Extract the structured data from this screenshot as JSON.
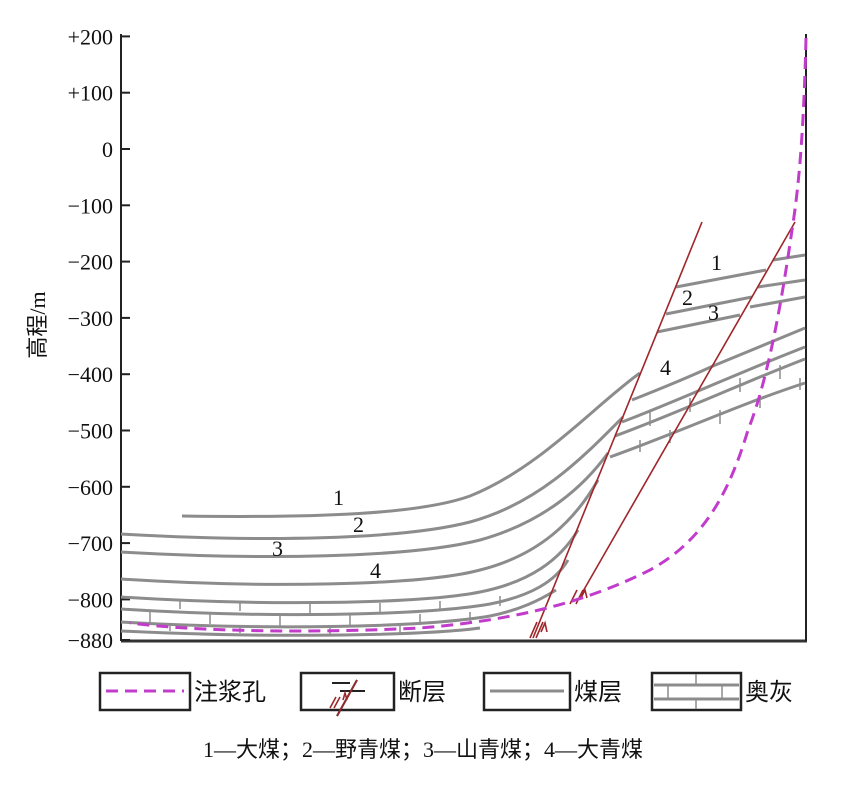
{
  "axis": {
    "ylabel": "高程/m",
    "ticks": [
      "+200",
      "+100",
      "0",
      "−100",
      "−200",
      "−300",
      "−400",
      "−500",
      "−600",
      "−700",
      "−800",
      "−880"
    ],
    "tick_values": [
      200,
      100,
      0,
      -100,
      -200,
      -300,
      -400,
      -500,
      -600,
      -700,
      -800,
      -880
    ]
  },
  "seam_labels": {
    "left": [
      "1",
      "2",
      "3",
      "4"
    ],
    "right": [
      "1",
      "2",
      "3",
      "4"
    ]
  },
  "legend": [
    {
      "label": "注浆孔",
      "icon": "dashed-magenta-line"
    },
    {
      "label": "断层",
      "icon": "fault-symbol"
    },
    {
      "label": "煤层",
      "icon": "gray-line"
    },
    {
      "label": "奥灰",
      "icon": "limestone-brick"
    }
  ],
  "caption": "1—大煤；2—野青煤；3—山青煤；4—大青煤",
  "colors": {
    "hole": "#c23ccc",
    "fault": "#a0262a",
    "seam": "#8c8c8c"
  }
}
